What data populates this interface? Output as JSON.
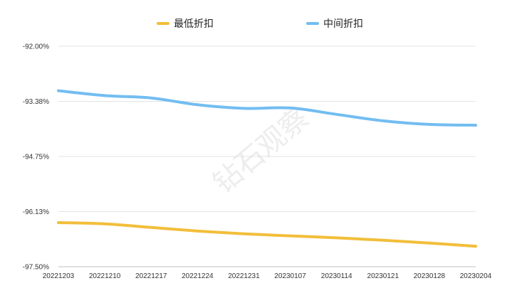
{
  "watermark": "钻石观察",
  "chart_data": {
    "type": "line",
    "title": "",
    "xlabel": "",
    "ylabel": "",
    "categories": [
      "20221203",
      "20221210",
      "20221217",
      "20221224",
      "20221231",
      "20230107",
      "20230114",
      "20230121",
      "20230128",
      "20230204"
    ],
    "ylim": [
      -97.5,
      -92.0
    ],
    "yticks": [
      "-92.00%",
      "-93.38%",
      "-94.75%",
      "-96.13%",
      "-97.50%"
    ],
    "grid": true,
    "legend_position": "top-center",
    "series": [
      {
        "name": "最低折扣",
        "color": "#f2be3a",
        "values": [
          -96.4,
          -96.43,
          -96.52,
          -96.61,
          -96.68,
          -96.73,
          -96.78,
          -96.84,
          -96.91,
          -96.99
        ]
      },
      {
        "name": "中间折扣",
        "color": "#72bdf1",
        "values": [
          -93.11,
          -93.23,
          -93.29,
          -93.46,
          -93.55,
          -93.54,
          -93.7,
          -93.86,
          -93.95,
          -93.97
        ]
      }
    ]
  }
}
